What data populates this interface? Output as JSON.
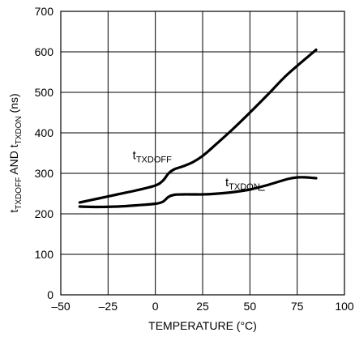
{
  "chart_data": {
    "type": "line",
    "xlabel": "TEMPERATURE (°C)",
    "ylabel": {
      "parts": [
        {
          "text": "t",
          "sub": false
        },
        {
          "text": "TXDOFF",
          "sub": true
        },
        {
          "text": " AND t",
          "sub": false
        },
        {
          "text": "TXDON",
          "sub": true
        },
        {
          "text": " (ns)",
          "sub": false
        }
      ]
    },
    "xlim": [
      -50,
      100
    ],
    "ylim": [
      0,
      700
    ],
    "xticks": [
      -50,
      -25,
      0,
      25,
      50,
      75,
      100
    ],
    "xtick_labels": [
      "–50",
      "–25",
      "0",
      "25",
      "50",
      "75",
      "100"
    ],
    "yticks": [
      0,
      100,
      200,
      300,
      400,
      500,
      600,
      700
    ],
    "ytick_labels": [
      "0",
      "100",
      "200",
      "300",
      "400",
      "500",
      "600",
      "700"
    ],
    "grid": true,
    "series": [
      {
        "name": "tTXDOFF",
        "label": {
          "main": "t",
          "sub": "TXDOFF",
          "at": [
            -12,
            335
          ]
        },
        "x": [
          -40,
          -30,
          -20,
          -10,
          0,
          4,
          7,
          10,
          15,
          20,
          25,
          30,
          40,
          50,
          60,
          70,
          85
        ],
        "y": [
          228,
          238,
          248,
          258,
          270,
          282,
          300,
          310,
          318,
          328,
          343,
          363,
          405,
          450,
          497,
          545,
          605
        ]
      },
      {
        "name": "tTXDON",
        "label": {
          "main": "t",
          "sub": "TXDON",
          "at": [
            37,
            268
          ],
          "underline": true
        },
        "x": [
          -40,
          -30,
          -20,
          -10,
          0,
          4,
          7,
          10,
          15,
          20,
          25,
          30,
          40,
          50,
          60,
          70,
          75,
          80,
          85
        ],
        "y": [
          218,
          217,
          218,
          221,
          225,
          230,
          242,
          247,
          248,
          248,
          248,
          249,
          253,
          260,
          272,
          286,
          290,
          290,
          288
        ]
      }
    ]
  }
}
